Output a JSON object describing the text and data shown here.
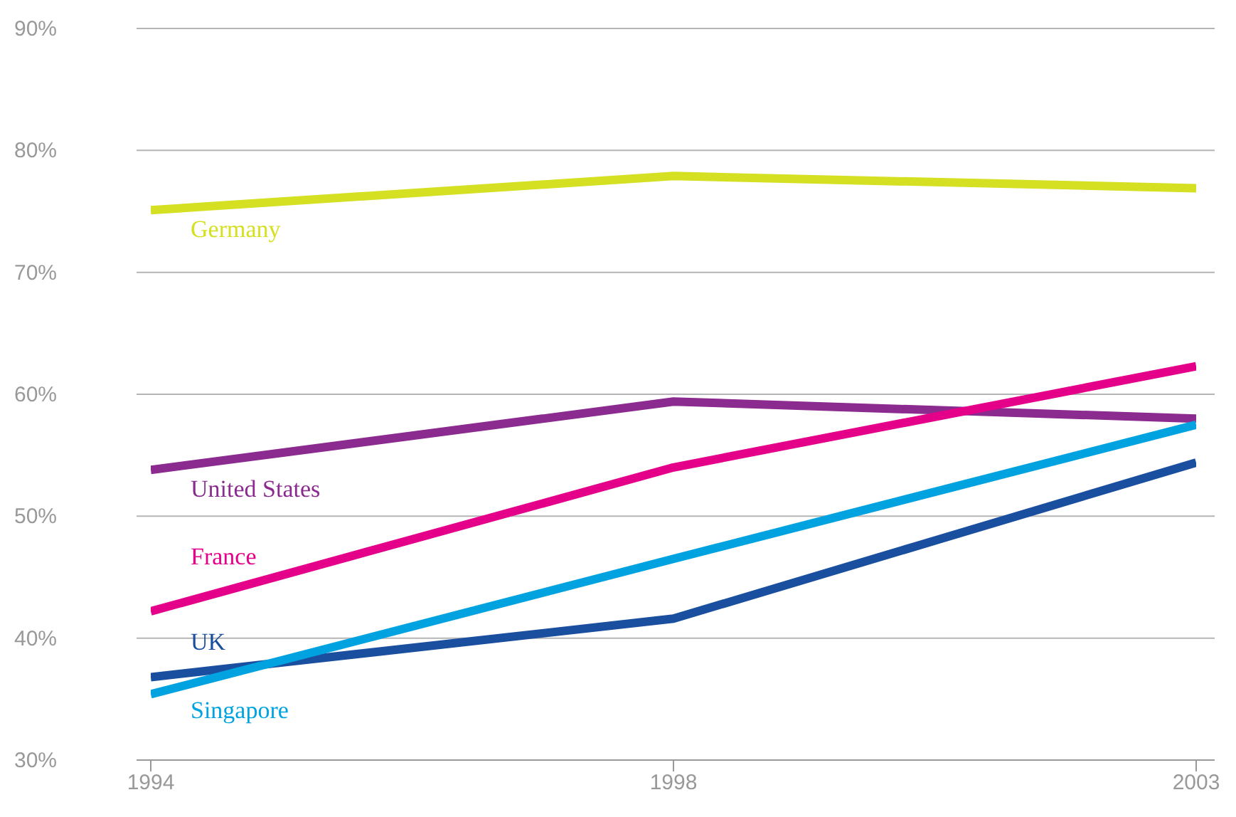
{
  "chart_data": {
    "type": "line",
    "categories": [
      "1994",
      "1998",
      "2003"
    ],
    "series": [
      {
        "name": "Germany",
        "color": "#d4e021",
        "values": [
          75.1,
          77.9,
          76.9
        ]
      },
      {
        "name": "United States",
        "color": "#8b2a8f",
        "values": [
          53.8,
          59.4,
          58.0
        ]
      },
      {
        "name": "France",
        "color": "#e5008a",
        "values": [
          42.2,
          54.0,
          62.3
        ]
      },
      {
        "name": "UK",
        "color": "#1a4f9f",
        "values": [
          36.8,
          41.6,
          54.4
        ]
      },
      {
        "name": "Singapore",
        "color": "#00a3e0",
        "values": [
          35.4,
          46.5,
          57.5
        ]
      }
    ],
    "ylim": [
      30,
      90
    ],
    "yticks": [
      {
        "value": 30,
        "label": "30%"
      },
      {
        "value": 40,
        "label": "40%"
      },
      {
        "value": 50,
        "label": "50%"
      },
      {
        "value": 60,
        "label": "60%"
      },
      {
        "value": 70,
        "label": "70%"
      },
      {
        "value": 80,
        "label": "80%"
      },
      {
        "value": 90,
        "label": "90%"
      }
    ],
    "grid": "y",
    "legend": false,
    "marker": "none",
    "line_style": "solid"
  }
}
